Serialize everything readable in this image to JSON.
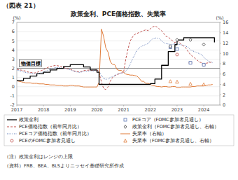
{
  "chart_data": {
    "type": "line",
    "title": "政策金利、PCE価格指数、失業率",
    "figure_label": "（図表 21）",
    "ylabel": "(%)",
    "y2label": "(%)",
    "notes": [
      "（注）政策金利はレンジの上限",
      "（資料）FRB、BEA、BLSよりニッセイ基礎研究所作成"
    ],
    "xlim": [
      2017,
      2024.6
    ],
    "xticks": [
      2017,
      2018,
      2019,
      2020,
      2021,
      2022,
      2023,
      2024
    ],
    "ylim": [
      -2,
      7
    ],
    "yticks": [
      -2,
      -1,
      0,
      1,
      2,
      3,
      4,
      5,
      6,
      7
    ],
    "y2lim": [
      0,
      16
    ],
    "y2ticks": [
      0,
      2,
      4,
      6,
      8,
      10,
      12,
      14,
      16
    ],
    "grid": true,
    "legend": "bottom",
    "price_target": {
      "value": 2.0,
      "label": "物価目標",
      "color": "#808080"
    },
    "series": [
      {
        "name": "政策金利",
        "type": "step",
        "color": "#000000",
        "line_style": "solid",
        "x": [
          2017.0,
          2017.25,
          2017.5,
          2017.75,
          2018.0,
          2018.25,
          2018.5,
          2018.75,
          2019.0,
          2019.25,
          2019.5,
          2019.75,
          2020.0,
          2020.08,
          2020.25,
          2020.5,
          2020.75,
          2021.0,
          2021.25,
          2021.5,
          2021.75,
          2022.0,
          2022.17,
          2022.42,
          2022.67,
          2022.92,
          2023.0,
          2023.25,
          2023.5,
          2023.75,
          2024.0,
          2024.25,
          2024.4
        ],
        "values": [
          0.66,
          0.91,
          1.16,
          1.41,
          1.58,
          1.83,
          2.0,
          2.2,
          2.4,
          2.4,
          2.15,
          1.83,
          1.58,
          0.25,
          0.25,
          0.25,
          0.25,
          0.25,
          0.25,
          0.25,
          0.25,
          0.33,
          0.83,
          2.33,
          3.83,
          4.58,
          5.08,
          5.33,
          5.33,
          5.33,
          5.33,
          5.33,
          4.83
        ]
      },
      {
        "name": "PCE価格指数（前年同月比）",
        "type": "line",
        "color": "#c0504d",
        "line_style": "dashed",
        "x": [
          2017.0,
          2017.08,
          2017.17,
          2017.25,
          2017.33,
          2017.42,
          2017.5,
          2017.58,
          2017.67,
          2017.75,
          2017.83,
          2017.92,
          2018.0,
          2018.08,
          2018.17,
          2018.25,
          2018.33,
          2018.42,
          2018.5,
          2018.58,
          2018.67,
          2018.75,
          2018.83,
          2018.92,
          2019.0,
          2019.08,
          2019.17,
          2019.25,
          2019.33,
          2019.42,
          2019.5,
          2019.58,
          2019.67,
          2019.75,
          2019.83,
          2019.92,
          2020.0,
          2020.08,
          2020.17,
          2020.25,
          2020.33,
          2020.42,
          2020.5,
          2020.58,
          2020.67,
          2020.75,
          2020.83,
          2020.92,
          2021.0,
          2021.08,
          2021.17,
          2021.25,
          2021.33,
          2021.42,
          2021.5,
          2021.58,
          2021.67,
          2021.75,
          2021.83,
          2021.92,
          2022.0,
          2022.08,
          2022.17,
          2022.25,
          2022.33,
          2022.42,
          2022.5,
          2022.58,
          2022.67,
          2022.75,
          2022.83,
          2022.92,
          2023.0,
          2023.08,
          2023.17,
          2023.25,
          2023.33,
          2023.42,
          2023.5,
          2023.58,
          2023.67,
          2023.75,
          2023.83,
          2023.92,
          2024.0,
          2024.08,
          2024.17,
          2024.25,
          2024.33
        ],
        "values": [
          1.9,
          1.85,
          1.8,
          1.75,
          1.7,
          1.6,
          1.55,
          1.52,
          1.5,
          1.55,
          1.65,
          1.75,
          1.85,
          2.0,
          2.1,
          2.2,
          2.25,
          2.3,
          2.3,
          2.25,
          2.2,
          2.1,
          2.0,
          1.95,
          1.9,
          1.8,
          1.7,
          1.65,
          1.6,
          1.65,
          1.75,
          1.78,
          1.8,
          1.82,
          1.78,
          1.8,
          1.9,
          1.5,
          0.5,
          -0.2,
          -0.3,
          0.0,
          0.6,
          1.0,
          1.2,
          1.3,
          1.4,
          1.5,
          1.6,
          3.0,
          4.2,
          5.0,
          5.4,
          5.7,
          5.8,
          5.9,
          6.0,
          6.1,
          6.2,
          6.1,
          6.3,
          6.5,
          6.6,
          6.5,
          6.3,
          6.1,
          5.8,
          5.5,
          5.4,
          5.2,
          5.0,
          4.8,
          5.0,
          4.8,
          4.6,
          4.4,
          4.2,
          3.8,
          3.5,
          3.3,
          3.1,
          2.9,
          2.7,
          2.6,
          2.5,
          2.55,
          2.6,
          2.65,
          2.7
        ]
      },
      {
        "name": "PCEコア価格指数（前年同月比）",
        "type": "line",
        "color": "#5b77b5",
        "line_style": "dotted",
        "x": [
          2017.0,
          2017.08,
          2017.17,
          2017.25,
          2017.33,
          2017.42,
          2017.5,
          2017.58,
          2017.67,
          2017.75,
          2017.83,
          2017.92,
          2018.0,
          2018.08,
          2018.17,
          2018.25,
          2018.33,
          2018.42,
          2018.5,
          2018.58,
          2018.67,
          2018.75,
          2018.83,
          2018.92,
          2019.0,
          2019.08,
          2019.17,
          2019.25,
          2019.33,
          2019.42,
          2019.5,
          2019.58,
          2019.67,
          2019.75,
          2019.83,
          2019.92,
          2020.0,
          2020.08,
          2020.17,
          2020.25,
          2020.33,
          2020.42,
          2020.5,
          2020.58,
          2020.67,
          2020.75,
          2020.83,
          2020.92,
          2021.0,
          2021.08,
          2021.17,
          2021.25,
          2021.33,
          2021.42,
          2021.5,
          2021.58,
          2021.67,
          2021.75,
          2021.83,
          2021.92,
          2022.0,
          2022.08,
          2022.17,
          2022.25,
          2022.33,
          2022.42,
          2022.5,
          2022.58,
          2022.67,
          2022.75,
          2022.83,
          2022.92,
          2023.0,
          2023.08,
          2023.17,
          2023.25,
          2023.33,
          2023.42,
          2023.5,
          2023.58,
          2023.67,
          2023.75,
          2023.83,
          2023.92,
          2024.0,
          2024.08,
          2024.17,
          2024.25,
          2024.33
        ],
        "values": [
          1.8,
          1.75,
          1.7,
          1.6,
          1.55,
          1.5,
          1.45,
          1.42,
          1.4,
          1.42,
          1.45,
          1.52,
          1.6,
          1.7,
          1.8,
          1.9,
          2.0,
          2.05,
          2.1,
          2.08,
          2.05,
          2.0,
          1.95,
          1.9,
          1.85,
          1.75,
          1.65,
          1.6,
          1.55,
          1.6,
          1.65,
          1.68,
          1.7,
          1.72,
          1.7,
          1.75,
          1.8,
          1.7,
          1.2,
          0.9,
          0.8,
          0.85,
          1.0,
          1.1,
          1.2,
          1.35,
          1.45,
          1.5,
          1.5,
          1.7,
          2.0,
          2.5,
          3.0,
          3.5,
          4.0,
          4.2,
          4.4,
          4.5,
          4.6,
          4.7,
          5.0,
          5.2,
          5.3,
          5.3,
          5.25,
          5.0,
          4.8,
          4.7,
          4.65,
          4.6,
          4.6,
          4.7,
          4.65,
          4.6,
          4.55,
          4.5,
          4.4,
          4.3,
          4.0,
          3.9,
          3.8,
          3.7,
          3.6,
          3.5,
          3.2,
          3.0,
          2.8,
          2.7,
          2.6
        ]
      },
      {
        "name": "PCEのFOMC参加者見通し",
        "type": "scatter",
        "color": "#c0504d",
        "marker": "circle",
        "x": [
          2022.75,
          2023.0,
          2023.5,
          2024.0
        ],
        "values": [
          4.3,
          3.5,
          2.6,
          2.4
        ]
      },
      {
        "name": "PCEコア（FOMC参加者見通し）",
        "type": "scatter",
        "color": "#5b77b5",
        "marker": "square",
        "x": [
          2022.75,
          2023.0,
          2023.5,
          2024.0
        ],
        "values": [
          4.3,
          4.1,
          2.6,
          2.4
        ]
      },
      {
        "name": "政策金利（FOMC参加者見通し、右軸）",
        "type": "scatter",
        "color": "#404040",
        "marker": "diamond",
        "x": [
          2022.75,
          2023.0,
          2023.5,
          2024.0
        ],
        "values": [
          4.4,
          5.1,
          5.1,
          4.6
        ]
      },
      {
        "name": "失業率（右軸）",
        "type": "line",
        "color": "#e07b39",
        "line_style": "solid",
        "axis": "y2",
        "x": [
          2017.0,
          2017.08,
          2017.17,
          2017.25,
          2017.33,
          2017.42,
          2017.5,
          2017.58,
          2017.67,
          2017.75,
          2017.83,
          2017.92,
          2018.0,
          2018.08,
          2018.17,
          2018.25,
          2018.33,
          2018.42,
          2018.5,
          2018.58,
          2018.67,
          2018.75,
          2018.83,
          2018.92,
          2019.0,
          2019.08,
          2019.17,
          2019.25,
          2019.33,
          2019.42,
          2019.5,
          2019.58,
          2019.67,
          2019.75,
          2019.83,
          2019.92,
          2020.0,
          2020.08,
          2020.17,
          2020.25,
          2020.33,
          2020.42,
          2020.5,
          2020.58,
          2020.67,
          2020.75,
          2020.83,
          2020.92,
          2021.0,
          2021.08,
          2021.17,
          2021.25,
          2021.33,
          2021.42,
          2021.5,
          2021.58,
          2021.67,
          2021.75,
          2021.83,
          2021.92,
          2022.0,
          2022.08,
          2022.17,
          2022.25,
          2022.33,
          2022.42,
          2022.5,
          2022.58,
          2022.67,
          2022.75,
          2022.83,
          2022.92,
          2023.0,
          2023.08,
          2023.17,
          2023.25,
          2023.33,
          2023.42,
          2023.5,
          2023.58,
          2023.67,
          2023.75,
          2023.83,
          2023.92,
          2024.0,
          2024.08,
          2024.17,
          2024.25,
          2024.33
        ],
        "values": [
          4.7,
          4.6,
          4.5,
          4.4,
          4.3,
          4.3,
          4.3,
          4.2,
          4.2,
          4.2,
          4.1,
          4.1,
          4.1,
          4.0,
          4.0,
          3.9,
          3.9,
          3.9,
          3.8,
          3.8,
          3.8,
          3.7,
          3.7,
          3.7,
          3.8,
          3.8,
          3.7,
          3.7,
          3.7,
          3.6,
          3.5,
          3.5,
          3.5,
          3.5,
          3.5,
          3.5,
          3.5,
          4.4,
          14.7,
          13.3,
          11.1,
          10.2,
          8.4,
          7.9,
          7.8,
          6.9,
          6.7,
          6.7,
          6.3,
          6.0,
          5.9,
          5.8,
          5.8,
          5.7,
          5.6,
          5.2,
          4.6,
          4.6,
          4.2,
          4.2,
          4.0,
          3.8,
          3.7,
          3.6,
          3.6,
          3.5,
          3.6,
          3.6,
          3.5,
          3.5,
          3.6,
          3.6,
          3.4,
          3.4,
          3.5,
          3.5,
          3.5,
          3.5,
          3.5,
          3.6,
          3.6,
          3.7,
          3.7,
          3.7,
          3.7,
          3.8,
          3.9,
          3.9,
          4.0
        ]
      },
      {
        "name": "失業率（FOMC参加者見通し、右軸）",
        "type": "scatter",
        "color": "#e07b39",
        "marker": "triangle",
        "axis": "y2",
        "x": [
          2022.75,
          2023.0,
          2023.5,
          2024.0
        ],
        "values": [
          4.6,
          4.5,
          4.1,
          4.0
        ]
      }
    ]
  }
}
